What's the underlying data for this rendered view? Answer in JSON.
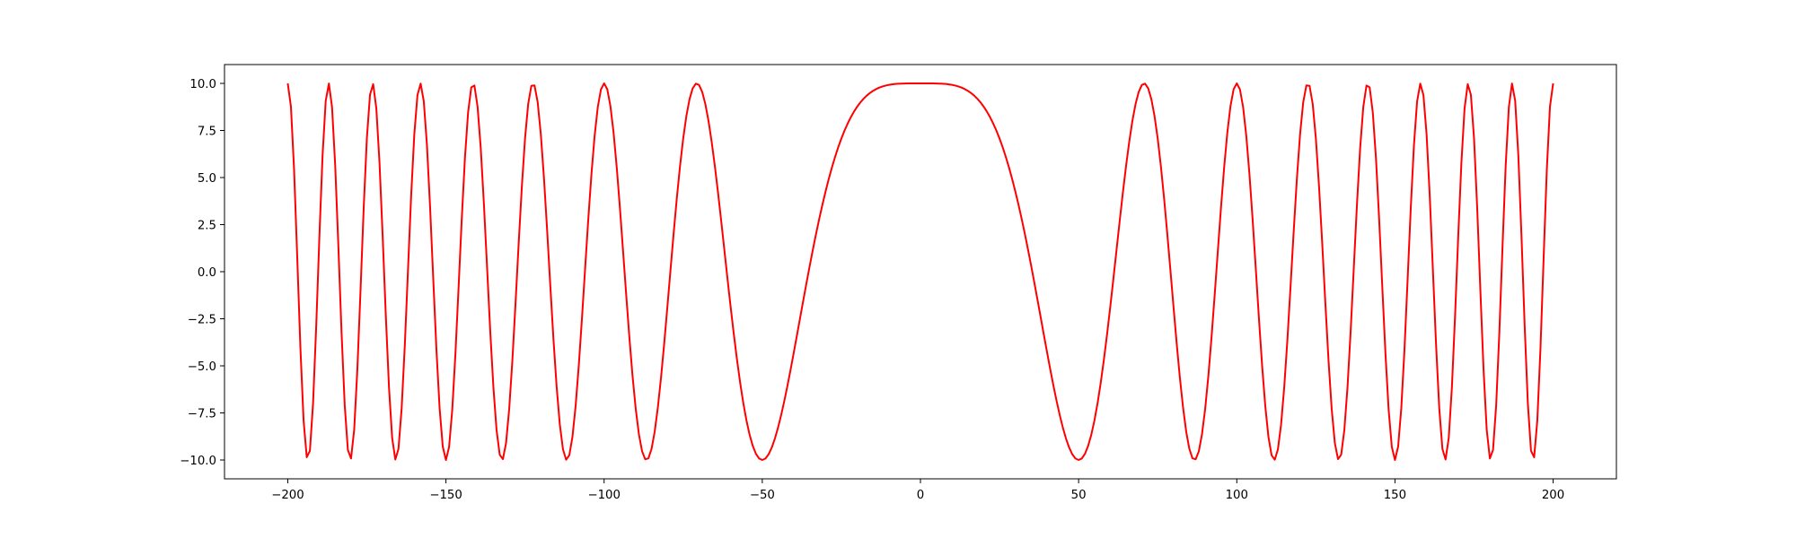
{
  "chart_data": {
    "type": "line",
    "title": "",
    "xlabel": "",
    "ylabel": "",
    "xlim": [
      -220,
      220
    ],
    "ylim": [
      -11,
      11
    ],
    "x_ticks": [
      -200,
      -150,
      -100,
      -50,
      0,
      50,
      100,
      150,
      200
    ],
    "x_tick_labels": [
      "−200",
      "−150",
      "−100",
      "−50",
      "0",
      "50",
      "100",
      "150",
      "200"
    ],
    "y_ticks": [
      10.0,
      7.5,
      5.0,
      2.5,
      0.0,
      -2.5,
      -5.0,
      -7.5,
      -10.0
    ],
    "y_tick_labels": [
      "10.0",
      "7.5",
      "5.0",
      "2.5",
      "0.0",
      "−2.5",
      "−5.0",
      "−7.5",
      "−10.0"
    ],
    "grid": false,
    "legend": "none",
    "series": [
      {
        "color": "#ff0000",
        "x_range": [
          -200,
          200
        ],
        "x_step": 1,
        "y_function": "10*cos(0.0004*pi*x^2)"
      }
    ]
  }
}
